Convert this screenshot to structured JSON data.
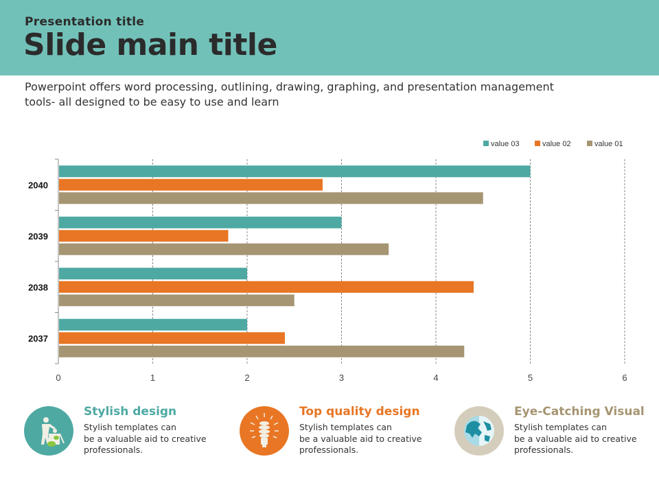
{
  "header": {
    "presentation_title": "Presentation title",
    "slide_title": "Slide main title"
  },
  "subtitle": "Powerpoint offers word processing, outlining, drawing, graphing, and presentation management tools- all designed to be easy to use and learn",
  "colors": {
    "header_bg": "#72c1b9",
    "value_03": "#4ea9a3",
    "value_02": "#e87624",
    "value_01": "#a69572",
    "feature_1": "#4ea9a3",
    "feature_2": "#e87624",
    "feature_3": "#a69572",
    "feature_3_circle": "#d5cdbb"
  },
  "chart_data": {
    "type": "bar",
    "orientation": "horizontal",
    "title": "",
    "xlabel": "",
    "ylabel": "",
    "categories": [
      "2040",
      "2039",
      "2038",
      "2037"
    ],
    "series": [
      {
        "name": "value 03",
        "color": "#4ea9a3",
        "values": [
          5.0,
          3.0,
          2.0,
          2.0
        ]
      },
      {
        "name": "value 02",
        "color": "#e87624",
        "values": [
          2.8,
          1.8,
          4.4,
          2.4
        ]
      },
      {
        "name": "value 01",
        "color": "#a69572",
        "values": [
          4.5,
          3.5,
          2.5,
          4.3
        ]
      }
    ],
    "xlim": [
      0,
      6
    ],
    "x_ticks": [
      "0",
      "1",
      "2",
      "3",
      "4",
      "5",
      "6"
    ],
    "grid": "vertical dashed",
    "legend": {
      "position": "top-right",
      "entries": [
        "value 03",
        "value 02",
        "value 01"
      ]
    }
  },
  "features": [
    {
      "icon": "recycle-person-icon",
      "title": "Stylish design",
      "desc_lines": [
        "Stylish templates can",
        "be a valuable aid to creative",
        "professionals."
      ]
    },
    {
      "icon": "lightbulb-icon",
      "title": "Top quality design",
      "desc_lines": [
        "Stylish templates can",
        "be a valuable aid to creative",
        "professionals."
      ]
    },
    {
      "icon": "globe-icon",
      "title": "Eye-Catching Visual",
      "desc_lines": [
        "Stylish templates can",
        "be a valuable aid to creative",
        "professionals."
      ]
    }
  ]
}
